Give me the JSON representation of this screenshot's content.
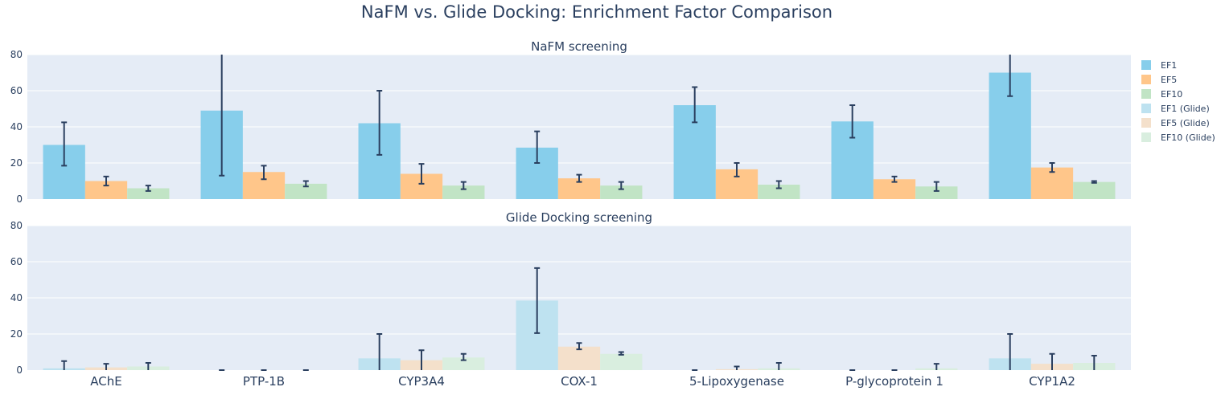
{
  "chart_data": {
    "type": "bar",
    "title": "NaFM vs. Glide Docking: Enrichment Factor Comparison",
    "categories": [
      "AChE",
      "PTP-1B",
      "CYP3A4",
      "COX-1",
      "5-Lipoxygenase",
      "P-glycoprotein 1",
      "CYP1A2"
    ],
    "ylim": [
      0,
      80
    ],
    "yticks": [
      0,
      20,
      40,
      60,
      80
    ],
    "grid": true,
    "legend_position": "right",
    "legend": [
      "EF1",
      "EF5",
      "EF10",
      "EF1 (Glide)",
      "EF5 (Glide)",
      "EF10 (Glide)"
    ],
    "panels": [
      {
        "subtitle": "NaFM screening",
        "series": [
          {
            "name": "EF1",
            "color": "#87CEEB",
            "values": [
              30,
              49,
              42,
              28.5,
              52,
              43,
              70
            ],
            "error": [
              [
                18.5,
                42.5
              ],
              [
                13,
                80
              ],
              [
                24.5,
                60
              ],
              [
                20,
                37.5
              ],
              [
                42.5,
                62
              ],
              [
                34,
                52
              ],
              [
                57,
                80
              ]
            ]
          },
          {
            "name": "EF5",
            "color": "#FFC68A",
            "values": [
              10,
              15,
              14,
              11.5,
              16.5,
              11,
              17.5
            ],
            "error": [
              [
                7.5,
                12.5
              ],
              [
                11,
                18.5
              ],
              [
                8.5,
                19.5
              ],
              [
                9.5,
                13.5
              ],
              [
                12.5,
                20
              ],
              [
                9.5,
                12.5
              ],
              [
                15,
                20
              ]
            ]
          },
          {
            "name": "EF10",
            "color": "#C1E4C5",
            "values": [
              6,
              8.5,
              7.5,
              7.5,
              8,
              7,
              9.5
            ],
            "error": [
              [
                4.5,
                7.5
              ],
              [
                7,
                10
              ],
              [
                5.5,
                9.5
              ],
              [
                5.5,
                9.5
              ],
              [
                6,
                10
              ],
              [
                4.5,
                9.5
              ],
              [
                9,
                10
              ]
            ]
          }
        ]
      },
      {
        "subtitle": "Glide Docking screening",
        "series": [
          {
            "name": "EF1 (Glide)",
            "color": "#BEE2F0",
            "values": [
              1,
              0,
              6.5,
              38.5,
              0,
              0,
              6.5
            ],
            "error": [
              [
                0,
                5
              ],
              [
                0,
                0
              ],
              [
                0,
                20
              ],
              [
                20.5,
                56.5
              ],
              [
                0,
                0
              ],
              [
                0,
                0
              ],
              [
                0,
                20
              ]
            ]
          },
          {
            "name": "EF5 (Glide)",
            "color": "#F4E0CB",
            "values": [
              1.5,
              0,
              5.5,
              13,
              0.5,
              0,
              3.5
            ],
            "error": [
              [
                0,
                3.5
              ],
              [
                0,
                0
              ],
              [
                0,
                11
              ],
              [
                11.5,
                15
              ],
              [
                0,
                2
              ],
              [
                0,
                0
              ],
              [
                0,
                9
              ]
            ]
          },
          {
            "name": "EF10 (Glide)",
            "color": "#D9EEDF",
            "values": [
              2,
              0,
              7,
              9,
              1,
              1,
              4
            ],
            "error": [
              [
                0,
                4
              ],
              [
                0,
                0
              ],
              [
                5.5,
                9
              ],
              [
                8.5,
                10
              ],
              [
                0,
                4
              ],
              [
                0,
                3.5
              ],
              [
                0,
                8
              ]
            ]
          }
        ]
      }
    ]
  }
}
